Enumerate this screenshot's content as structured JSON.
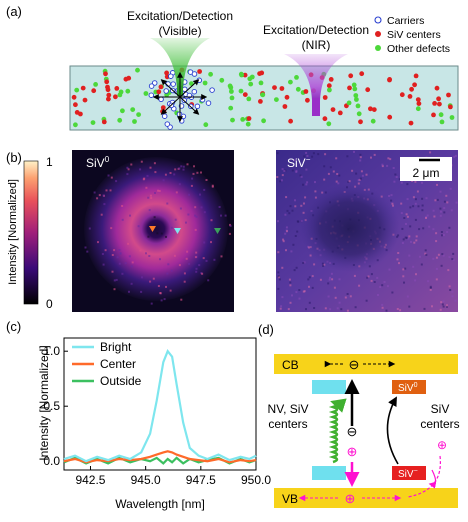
{
  "panels": {
    "a": {
      "label": "(a)",
      "beam1_label_line1": "Excitation/Detection",
      "beam1_label_line2": "(Visible)",
      "beam2_label_line1": "Excitation/Detection",
      "beam2_label_line2": "(NIR)",
      "legend": [
        {
          "name": "Carriers",
          "color": "#2a3fd0",
          "marker": "open-circle"
        },
        {
          "name": "SiV centers",
          "color": "#e02020",
          "marker": "filled-circle"
        },
        {
          "name": "Other defects",
          "color": "#4cd83a",
          "marker": "filled-circle"
        }
      ],
      "colors": {
        "slab": "#c8e6e6",
        "visible_beam": "#43c03c",
        "nir_beam": "#b04fd8"
      }
    },
    "b": {
      "label": "(b)",
      "colorbar_max": "1",
      "colorbar_min": "0",
      "colorbar_label": "Intensity [Normalized]",
      "left_image_label": "SiV",
      "left_image_label_sup": "0",
      "right_image_label": "SiV",
      "right_image_label_sup": "−",
      "scalebar_label": "2 μm",
      "marker_colors": {
        "center": "#ff7a2a",
        "bright": "#7ee6ee",
        "outside": "#3aa05c"
      }
    },
    "c": {
      "label": "(c)",
      "ylabel": "Intensity [Normalized]",
      "xlabel": "Wavelength [nm]"
    },
    "d": {
      "label": "(d)",
      "cb_label": "CB",
      "vb_label": "VB",
      "minus_symbol": "⊖",
      "plus_symbol": "⊕",
      "siv0_label": "SiV",
      "siv0_sup": "0",
      "sivm_label": "SiV",
      "sivm_sup": "−",
      "nv_label_line1": "NV, SiV",
      "nv_label_line2": "centers",
      "siv_label_line1": "SiV",
      "siv_label_line2": "centers",
      "colors": {
        "band": "#f7d31a",
        "nv_level": "#6fe0ee",
        "siv0_level": "#e06010",
        "sivm_level": "#e62020",
        "hole": "#ff10d0",
        "wavy": "#40b030"
      }
    }
  },
  "chart_data": {
    "type": "line",
    "xlabel": "Wavelength [nm]",
    "ylabel": "Intensity [Normalized]",
    "xlim": [
      941.3,
      950.0
    ],
    "ylim": [
      -0.08,
      1.12
    ],
    "xticks": [
      942.5,
      945.0,
      947.5,
      950.0
    ],
    "xtick_labels": [
      "942.5",
      "945.0",
      "947.5",
      "950.0"
    ],
    "yticks": [
      0.0,
      0.5,
      1.0
    ],
    "ytick_labels": [
      "0.0",
      "0.5",
      "1.0"
    ],
    "legend_position": "top-left",
    "x": [
      941.3,
      941.8,
      942.3,
      942.8,
      943.3,
      943.8,
      944.3,
      944.8,
      945.2,
      945.5,
      945.8,
      946.0,
      946.2,
      946.4,
      946.7,
      947.0,
      947.4,
      947.8,
      948.3,
      948.8,
      949.3,
      949.7,
      950.0
    ],
    "series": [
      {
        "name": "Bright",
        "color": "#7ee6ee",
        "values": [
          0.02,
          0.05,
          0.0,
          0.04,
          0.01,
          0.05,
          0.02,
          0.08,
          0.25,
          0.55,
          0.9,
          1.0,
          0.95,
          0.7,
          0.35,
          0.12,
          0.05,
          0.02,
          0.06,
          0.01,
          0.04,
          0.02,
          0.05
        ]
      },
      {
        "name": "Center",
        "color": "#ff6a2a",
        "values": [
          0.0,
          0.02,
          -0.01,
          0.01,
          0.0,
          0.02,
          0.01,
          0.02,
          0.04,
          0.06,
          0.08,
          0.09,
          0.08,
          0.06,
          0.04,
          0.02,
          0.01,
          0.0,
          0.02,
          -0.01,
          0.01,
          0.0,
          0.01
        ]
      },
      {
        "name": "Outside",
        "color": "#3cc060",
        "values": [
          -0.01,
          0.03,
          -0.02,
          0.02,
          -0.02,
          0.03,
          -0.01,
          0.02,
          0.0,
          0.03,
          -0.02,
          0.02,
          -0.01,
          0.03,
          -0.02,
          0.02,
          -0.01,
          0.01,
          0.03,
          -0.02,
          0.02,
          -0.01,
          0.01
        ]
      }
    ]
  }
}
